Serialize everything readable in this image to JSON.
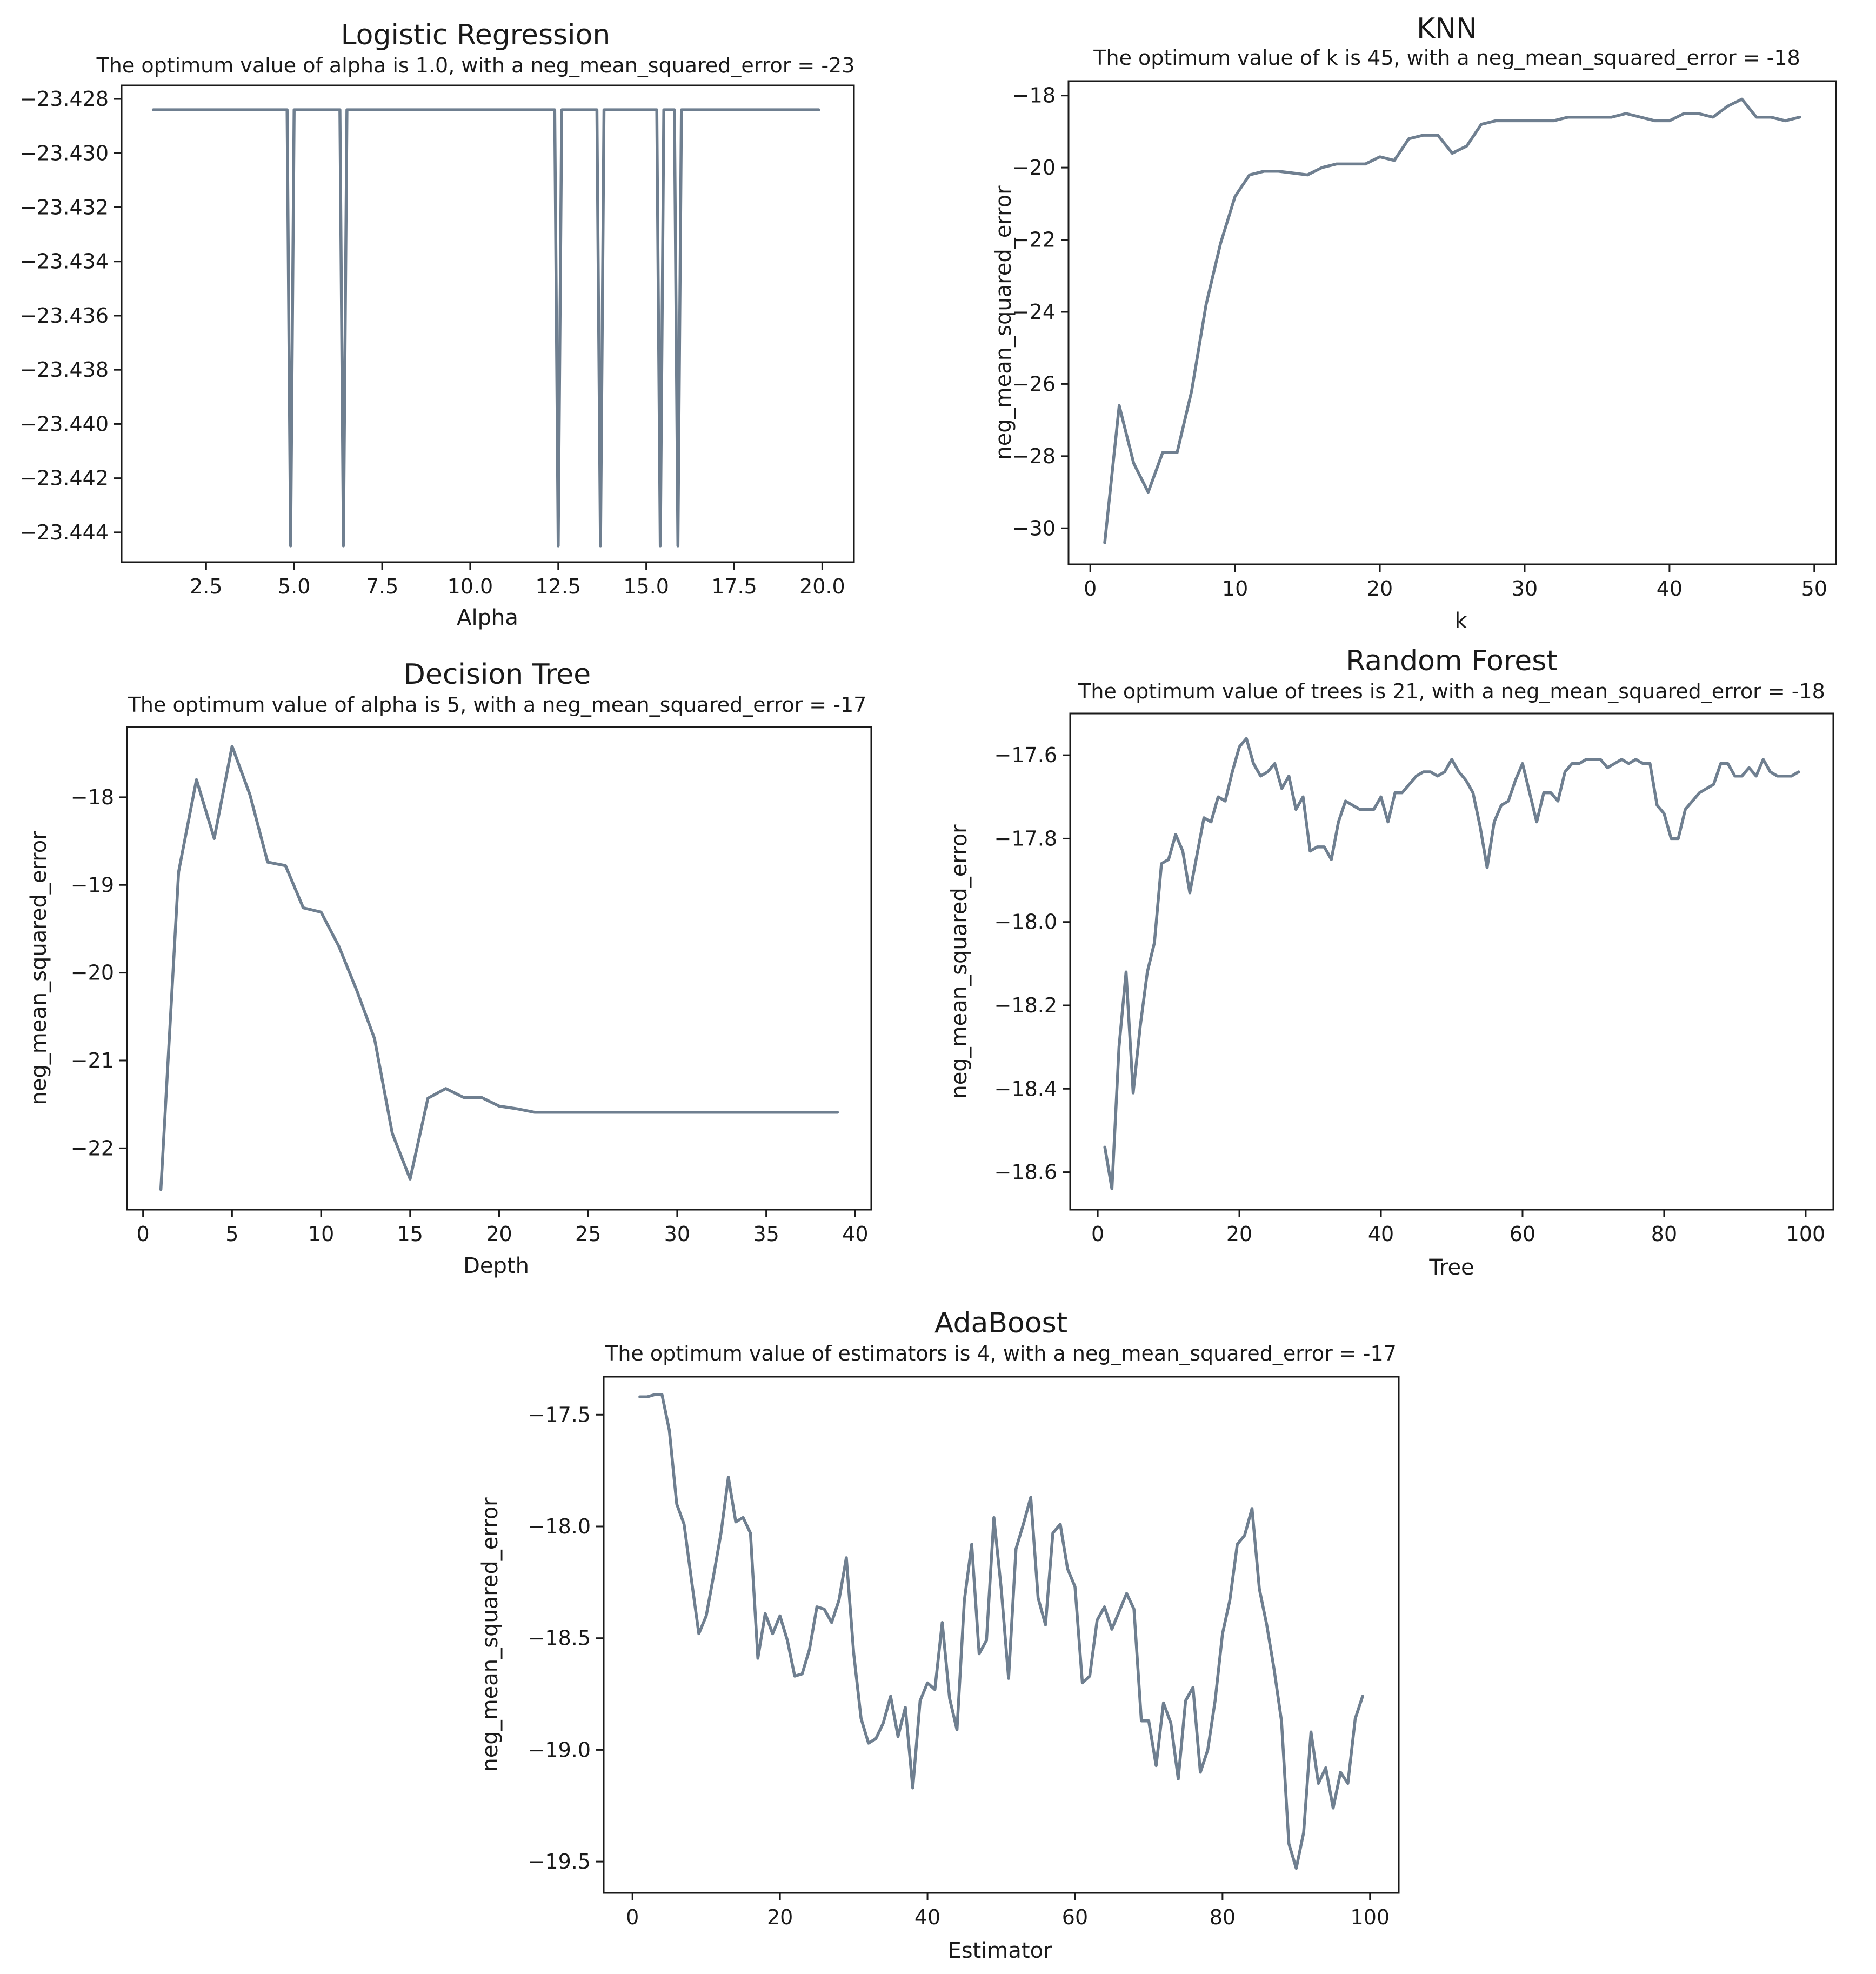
{
  "colors": {
    "series": "#6f7f90",
    "axes": "#1a1a1a",
    "background": "#ffffff"
  },
  "chart_data": [
    {
      "id": "logreg",
      "type": "line",
      "title": "Logistic Regression",
      "subtitle": "The optimum value of alpha is 1.0, with a neg_mean_squared_error = -23",
      "xlabel": "Alpha",
      "ylabel": "",
      "xlim": [
        0.1,
        20.9
      ],
      "ylim": [
        -23.4451,
        -23.4275
      ],
      "xticks": [
        2.5,
        5.0,
        7.5,
        10.0,
        12.5,
        15.0,
        17.5,
        20.0
      ],
      "xtick_labels": [
        "2.5",
        "5.0",
        "7.5",
        "10.0",
        "12.5",
        "15.0",
        "17.5",
        "20.0"
      ],
      "yticks": [
        -23.428,
        -23.43,
        -23.432,
        -23.434,
        -23.436,
        -23.438,
        -23.44,
        -23.442,
        -23.444
      ],
      "ytick_labels": [
        "−23.428",
        "−23.430",
        "−23.432",
        "−23.434",
        "−23.436",
        "−23.438",
        "−23.440",
        "−23.442",
        "−23.444"
      ],
      "x": [
        1.0,
        4.8,
        4.9,
        5.0,
        6.3,
        6.4,
        6.5,
        12.4,
        12.5,
        12.6,
        13.6,
        13.7,
        13.8,
        15.3,
        15.4,
        15.5,
        15.8,
        15.9,
        16.0,
        19.9
      ],
      "y": [
        -23.4284,
        -23.4284,
        -23.4445,
        -23.4284,
        -23.4284,
        -23.4445,
        -23.4284,
        -23.4284,
        -23.4445,
        -23.4284,
        -23.4284,
        -23.4445,
        -23.4284,
        -23.4284,
        -23.4445,
        -23.4284,
        -23.4284,
        -23.4445,
        -23.4284,
        -23.4284
      ]
    },
    {
      "id": "knn",
      "type": "line",
      "title": "KNN",
      "subtitle": "The optimum value of k is 45, with a neg_mean_squared_error = -18",
      "xlabel": "k",
      "ylabel": "neg_mean_squared_error",
      "xlim": [
        -1.5,
        51.5
      ],
      "ylim": [
        -31.0,
        -17.6
      ],
      "xticks": [
        0,
        10,
        20,
        30,
        40,
        50
      ],
      "xtick_labels": [
        "0",
        "10",
        "20",
        "30",
        "40",
        "50"
      ],
      "yticks": [
        -18,
        -20,
        -22,
        -24,
        -26,
        -28,
        -30
      ],
      "ytick_labels": [
        "−18",
        "−20",
        "−22",
        "−24",
        "−26",
        "−28",
        "−30"
      ],
      "x": [
        1,
        2,
        3,
        4,
        5,
        6,
        7,
        8,
        9,
        10,
        11,
        12,
        13,
        14,
        15,
        16,
        17,
        18,
        19,
        20,
        21,
        22,
        23,
        24,
        25,
        26,
        27,
        28,
        29,
        30,
        31,
        32,
        33,
        34,
        35,
        36,
        37,
        38,
        39,
        40,
        41,
        42,
        43,
        44,
        45,
        46,
        47,
        48,
        49
      ],
      "y": [
        -30.4,
        -26.6,
        -28.2,
        -29.0,
        -27.9,
        -27.9,
        -26.2,
        -23.8,
        -22.1,
        -20.8,
        -20.2,
        -20.1,
        -20.1,
        -20.15,
        -20.2,
        -20.0,
        -19.9,
        -19.9,
        -19.9,
        -19.7,
        -19.8,
        -19.2,
        -19.1,
        -19.1,
        -19.6,
        -19.4,
        -18.8,
        -18.7,
        -18.7,
        -18.7,
        -18.7,
        -18.7,
        -18.6,
        -18.6,
        -18.6,
        -18.6,
        -18.5,
        -18.6,
        -18.7,
        -18.7,
        -18.5,
        -18.5,
        -18.6,
        -18.3,
        -18.1,
        -18.6,
        -18.6,
        -18.7,
        -18.6
      ]
    },
    {
      "id": "dtree",
      "type": "line",
      "title": "Decision Tree",
      "subtitle": "The optimum value of alpha is 5, with a neg_mean_squared_error = -17",
      "xlabel": "Depth",
      "ylabel": "neg_mean_squared_error",
      "xlim": [
        -0.9,
        40.9
      ],
      "ylim": [
        -22.7,
        -17.2
      ],
      "xticks": [
        0,
        5,
        10,
        15,
        20,
        25,
        30,
        35,
        40
      ],
      "xtick_labels": [
        "0",
        "5",
        "10",
        "15",
        "20",
        "25",
        "30",
        "35",
        "40"
      ],
      "yticks": [
        -18,
        -19,
        -20,
        -21,
        -22
      ],
      "ytick_labels": [
        "−18",
        "−19",
        "−20",
        "−21",
        "−22"
      ],
      "x": [
        1,
        2,
        3,
        4,
        5,
        6,
        7,
        8,
        9,
        10,
        11,
        12,
        13,
        14,
        15,
        16,
        17,
        18,
        19,
        20,
        21,
        22,
        23,
        24,
        25,
        26,
        27,
        28,
        29,
        30,
        31,
        32,
        33,
        34,
        35,
        36,
        37,
        38,
        39
      ],
      "y": [
        -22.47,
        -18.85,
        -17.8,
        -18.47,
        -17.42,
        -17.97,
        -18.74,
        -18.78,
        -19.26,
        -19.31,
        -19.7,
        -20.2,
        -20.75,
        -21.83,
        -22.35,
        -21.43,
        -21.32,
        -21.42,
        -21.42,
        -21.52,
        -21.55,
        -21.59,
        -21.59,
        -21.59,
        -21.59,
        -21.59,
        -21.59,
        -21.59,
        -21.59,
        -21.59,
        -21.59,
        -21.59,
        -21.59,
        -21.59,
        -21.59,
        -21.59,
        -21.59,
        -21.59,
        -21.59
      ]
    },
    {
      "id": "rforest",
      "type": "line",
      "title": "Random Forest",
      "subtitle": "The optimum value of trees is 21, with a neg_mean_squared_error = -18",
      "xlabel": "Tree",
      "ylabel": "neg_mean_squared_error",
      "xlim": [
        -3.9,
        103.9
      ],
      "ylim": [
        -18.69,
        -17.5
      ],
      "xticks": [
        0,
        20,
        40,
        60,
        80,
        100
      ],
      "xtick_labels": [
        "0",
        "20",
        "40",
        "60",
        "80",
        "100"
      ],
      "yticks": [
        -17.6,
        -17.8,
        -18.0,
        -18.2,
        -18.4,
        -18.6
      ],
      "ytick_labels": [
        "−17.6",
        "−17.8",
        "−18.0",
        "−18.2",
        "−18.4",
        "−18.6"
      ],
      "x": [
        1,
        2,
        3,
        4,
        5,
        6,
        7,
        8,
        9,
        10,
        11,
        12,
        13,
        14,
        15,
        16,
        17,
        18,
        19,
        20,
        21,
        22,
        23,
        24,
        25,
        26,
        27,
        28,
        29,
        30,
        31,
        32,
        33,
        34,
        35,
        36,
        37,
        38,
        39,
        40,
        41,
        42,
        43,
        44,
        45,
        46,
        47,
        48,
        49,
        50,
        51,
        52,
        53,
        54,
        55,
        56,
        57,
        58,
        59,
        60,
        61,
        62,
        63,
        64,
        65,
        66,
        67,
        68,
        69,
        70,
        71,
        72,
        73,
        74,
        75,
        76,
        77,
        78,
        79,
        80,
        81,
        82,
        83,
        84,
        85,
        86,
        87,
        88,
        89,
        90,
        91,
        92,
        93,
        94,
        95,
        96,
        97,
        98,
        99
      ],
      "y": [
        -18.54,
        -18.64,
        -18.3,
        -18.12,
        -18.41,
        -18.25,
        -18.12,
        -18.05,
        -17.86,
        -17.85,
        -17.79,
        -17.83,
        -17.93,
        -17.84,
        -17.75,
        -17.76,
        -17.7,
        -17.71,
        -17.64,
        -17.58,
        -17.56,
        -17.62,
        -17.65,
        -17.64,
        -17.62,
        -17.68,
        -17.65,
        -17.73,
        -17.7,
        -17.83,
        -17.82,
        -17.82,
        -17.85,
        -17.76,
        -17.71,
        -17.72,
        -17.73,
        -17.73,
        -17.73,
        -17.7,
        -17.76,
        -17.69,
        -17.69,
        -17.67,
        -17.65,
        -17.64,
        -17.64,
        -17.65,
        -17.64,
        -17.61,
        -17.64,
        -17.66,
        -17.69,
        -17.77,
        -17.87,
        -17.76,
        -17.72,
        -17.71,
        -17.66,
        -17.62,
        -17.69,
        -17.76,
        -17.69,
        -17.69,
        -17.71,
        -17.64,
        -17.62,
        -17.62,
        -17.61,
        -17.61,
        -17.61,
        -17.63,
        -17.62,
        -17.61,
        -17.62,
        -17.61,
        -17.62,
        -17.62,
        -17.72,
        -17.74,
        -17.8,
        -17.8,
        -17.73,
        -17.71,
        -17.69,
        -17.68,
        -17.67,
        -17.62,
        -17.62,
        -17.65,
        -17.65,
        -17.63,
        -17.65,
        -17.61,
        -17.64,
        -17.65,
        -17.65,
        -17.65,
        -17.64
      ]
    },
    {
      "id": "adaboost",
      "type": "line",
      "title": "AdaBoost",
      "subtitle": "The optimum value of estimators is 4, with a neg_mean_squared_error = -17",
      "xlabel": "Estimator",
      "ylabel": "neg_mean_squared_error",
      "xlim": [
        -3.9,
        103.9
      ],
      "ylim": [
        -19.64,
        -17.33
      ],
      "xticks": [
        0,
        20,
        40,
        60,
        80,
        100
      ],
      "xtick_labels": [
        "0",
        "20",
        "40",
        "60",
        "80",
        "100"
      ],
      "yticks": [
        -17.5,
        -18.0,
        -18.5,
        -19.0,
        -19.5
      ],
      "ytick_labels": [
        "−17.5",
        "−18.0",
        "−18.5",
        "−19.0",
        "−19.5"
      ],
      "x": [
        1,
        2,
        3,
        4,
        5,
        6,
        7,
        8,
        9,
        10,
        11,
        12,
        13,
        14,
        15,
        16,
        17,
        18,
        19,
        20,
        21,
        22,
        23,
        24,
        25,
        26,
        27,
        28,
        29,
        30,
        31,
        32,
        33,
        34,
        35,
        36,
        37,
        38,
        39,
        40,
        41,
        42,
        43,
        44,
        45,
        46,
        47,
        48,
        49,
        50,
        51,
        52,
        53,
        54,
        55,
        56,
        57,
        58,
        59,
        60,
        61,
        62,
        63,
        64,
        65,
        66,
        67,
        68,
        69,
        70,
        71,
        72,
        73,
        74,
        75,
        76,
        77,
        78,
        79,
        80,
        81,
        82,
        83,
        84,
        85,
        86,
        87,
        88,
        89,
        90,
        91,
        92,
        93,
        94,
        95,
        96,
        97,
        98,
        99
      ],
      "y": [
        -17.42,
        -17.42,
        -17.41,
        -17.41,
        -17.57,
        -17.9,
        -17.99,
        -18.24,
        -18.48,
        -18.4,
        -18.22,
        -18.03,
        -17.78,
        -17.98,
        -17.96,
        -18.03,
        -18.59,
        -18.39,
        -18.48,
        -18.4,
        -18.51,
        -18.67,
        -18.66,
        -18.55,
        -18.36,
        -18.37,
        -18.43,
        -18.33,
        -18.14,
        -18.57,
        -18.86,
        -18.97,
        -18.95,
        -18.88,
        -18.76,
        -18.94,
        -18.81,
        -19.17,
        -18.78,
        -18.7,
        -18.73,
        -18.43,
        -18.77,
        -18.91,
        -18.33,
        -18.08,
        -18.57,
        -18.51,
        -17.96,
        -18.28,
        -18.68,
        -18.1,
        -17.99,
        -17.87,
        -18.32,
        -18.44,
        -18.03,
        -17.99,
        -18.19,
        -18.27,
        -18.7,
        -18.67,
        -18.42,
        -18.36,
        -18.46,
        -18.38,
        -18.3,
        -18.37,
        -18.87,
        -18.87,
        -19.07,
        -18.79,
        -18.88,
        -19.13,
        -18.78,
        -18.72,
        -19.1,
        -19.0,
        -18.78,
        -18.48,
        -18.33,
        -18.08,
        -18.04,
        -17.92,
        -18.28,
        -18.44,
        -18.64,
        -18.87,
        -19.42,
        -19.53,
        -19.37,
        -18.92,
        -19.15,
        -19.08,
        -19.26,
        -19.1,
        -19.15,
        -18.86,
        -18.76
      ]
    }
  ]
}
